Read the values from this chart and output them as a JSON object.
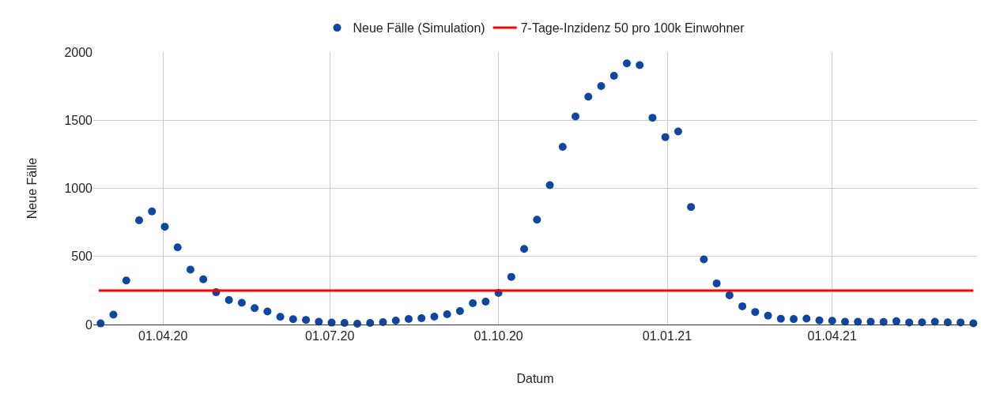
{
  "chart_data": {
    "type": "scatter",
    "xlabel": "Datum",
    "ylabel": "Neue Fälle",
    "x": [
      "2020-02-27",
      "2020-03-05",
      "2020-03-12",
      "2020-03-19",
      "2020-03-26",
      "2020-04-02",
      "2020-04-09",
      "2020-04-16",
      "2020-04-23",
      "2020-04-30",
      "2020-05-07",
      "2020-05-14",
      "2020-05-21",
      "2020-05-28",
      "2020-06-04",
      "2020-06-11",
      "2020-06-18",
      "2020-06-25",
      "2020-07-02",
      "2020-07-09",
      "2020-07-16",
      "2020-07-23",
      "2020-07-30",
      "2020-08-06",
      "2020-08-13",
      "2020-08-20",
      "2020-08-27",
      "2020-09-03",
      "2020-09-10",
      "2020-09-17",
      "2020-09-24",
      "2020-10-01",
      "2020-10-08",
      "2020-10-15",
      "2020-10-22",
      "2020-10-29",
      "2020-11-05",
      "2020-11-12",
      "2020-11-19",
      "2020-11-26",
      "2020-12-03",
      "2020-12-10",
      "2020-12-17",
      "2020-12-24",
      "2020-12-31",
      "2021-01-07",
      "2021-01-14",
      "2021-01-21",
      "2021-01-28",
      "2021-02-04",
      "2021-02-11",
      "2021-02-18",
      "2021-02-25",
      "2021-03-04",
      "2021-03-11",
      "2021-03-18",
      "2021-03-25",
      "2021-04-01",
      "2021-04-08",
      "2021-04-15",
      "2021-04-22",
      "2021-04-29",
      "2021-05-06",
      "2021-05-13",
      "2021-05-20",
      "2021-05-27",
      "2021-06-03",
      "2021-06-10",
      "2021-06-17"
    ],
    "series": [
      {
        "name": "Neue Fälle (Simulation)",
        "color": "#0d47a1",
        "values": [
          8,
          72,
          323,
          765,
          830,
          718,
          567,
          403,
          332,
          237,
          180,
          159,
          120,
          96,
          57,
          39,
          34,
          20,
          14,
          12,
          6,
          12,
          17,
          29,
          41,
          46,
          58,
          75,
          99,
          157,
          168,
          232,
          350,
          555,
          770,
          1023,
          1304,
          1528,
          1672,
          1751,
          1826,
          1917,
          1904,
          1518,
          1376,
          1417,
          863,
          478,
          302,
          215,
          134,
          92,
          65,
          42,
          40,
          43,
          30,
          28,
          20,
          20,
          20,
          19,
          24,
          15,
          16,
          20,
          16,
          15,
          9
        ]
      },
      {
        "name": "7-Tage-Inzidenz 50 pro 100k Einwohner",
        "type": "line",
        "marker": "none",
        "color": "#ff0000",
        "x": [
          "2020-02-26",
          "2021-06-17"
        ],
        "values": [
          250,
          250
        ]
      }
    ],
    "xlim": [
      "2020-02-23",
      "2021-06-19"
    ],
    "xticks": [
      {
        "value": "2020-04-01",
        "label": "01.04.20"
      },
      {
        "value": "2020-07-01",
        "label": "01.07.20"
      },
      {
        "value": "2020-10-01",
        "label": "01.10.20"
      },
      {
        "value": "2021-01-01",
        "label": "01.01.21"
      },
      {
        "value": "2021-04-01",
        "label": "01.04.21"
      }
    ],
    "ylim": [
      0,
      2000
    ],
    "yticks": [
      0,
      500,
      1000,
      1500,
      2000
    ],
    "grid": true,
    "legend": "top",
    "marker": "circle",
    "line_style": "solid"
  }
}
